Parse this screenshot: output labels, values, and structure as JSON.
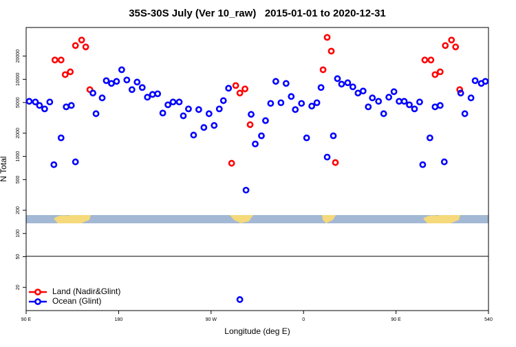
{
  "chart_data": {
    "type": "scatter",
    "title": "35S-30S July (Ver 10_raw)   2015-01-01 to 2020-12-31",
    "x_label": "Longitude (deg E)",
    "y_label": "N Total",
    "xlim": [
      90,
      540
    ],
    "xticks": [
      {
        "value": 90,
        "label": "90 E"
      },
      180,
      {
        "value": 270,
        "label": "90 W"
      },
      {
        "value": 360,
        "label": "0"
      },
      {
        "value": 450,
        "label": "90 E"
      },
      540
    ],
    "ylim": [
      10,
      47000
    ],
    "log_y": true,
    "yticks": [
      20,
      50,
      100,
      200,
      500,
      1000,
      2000,
      5000,
      10000,
      20000
    ],
    "legend": "lower left",
    "series": [
      {
        "name": "Land (Nadir&Glint)",
        "color": "#ff0000",
        "x": [
          118,
          124,
          128,
          133,
          138,
          144,
          148,
          152,
          290,
          294,
          298,
          303,
          308,
          379,
          383,
          387,
          391,
          478,
          484,
          488,
          493,
          498,
          504,
          508,
          512
        ],
        "values": [
          17800,
          17800,
          11500,
          12500,
          27400,
          32300,
          26300,
          7350,
          815,
          8300,
          6630,
          7500,
          2580,
          13300,
          35000,
          23200,
          832,
          17800,
          17800,
          11500,
          12500,
          27400,
          32300,
          26300,
          7350
        ]
      },
      {
        "name": "Ocean (Glint)",
        "color": "#0000ff",
        "x": [
          93,
          99,
          103,
          108,
          113,
          117,
          124,
          129,
          134,
          138,
          155,
          158,
          164,
          168,
          173,
          178,
          183,
          188,
          193,
          198,
          203,
          208,
          213,
          218,
          223,
          228,
          233,
          239,
          243,
          248,
          253,
          258,
          263,
          268,
          273,
          278,
          282,
          287,
          298,
          304,
          309,
          313,
          319,
          323,
          328,
          333,
          338,
          343,
          348,
          352,
          358,
          363,
          368,
          373,
          377,
          383,
          389,
          393,
          397,
          403,
          408,
          413,
          418,
          423,
          427,
          433,
          438,
          443,
          448,
          453,
          458,
          463,
          468,
          473,
          476,
          483,
          488,
          493,
          497,
          513,
          517,
          523,
          527,
          533,
          537
        ],
        "values": [
          5180,
          5080,
          4580,
          4130,
          5080,
          781,
          1740,
          4390,
          4580,
          849,
          6630,
          3580,
          5740,
          9600,
          8840,
          9400,
          13300,
          9800,
          7350,
          9210,
          7820,
          5860,
          6360,
          6490,
          3650,
          4670,
          5080,
          5080,
          3360,
          4130,
          1890,
          4050,
          2370,
          3580,
          2520,
          4130,
          5290,
          7650,
          13.9,
          365,
          3510,
          1450,
          1850,
          2910,
          4870,
          9400,
          4970,
          8840,
          5980,
          4050,
          4870,
          1740,
          4490,
          4970,
          7820,
          980,
          1850,
          10200,
          8660,
          9020,
          7980,
          6630,
          7050,
          4390,
          5740,
          5180,
          3580,
          5860,
          6910,
          5180,
          5180,
          4670,
          4130,
          5080,
          781,
          1740,
          4390,
          4580,
          849,
          6630,
          3580,
          5740,
          9600,
          8840,
          9400
        ]
      }
    ]
  }
}
